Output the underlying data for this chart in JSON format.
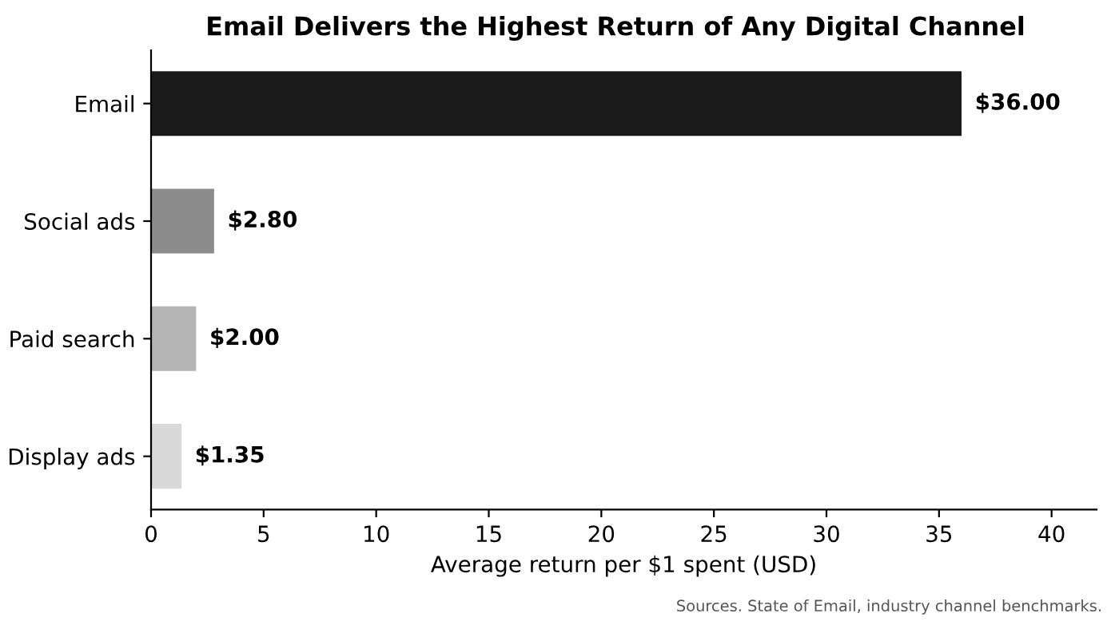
{
  "chart_data": {
    "type": "bar",
    "orientation": "horizontal",
    "title": "Email Delivers the Highest Return of Any Digital Channel",
    "categories": [
      "Email",
      "Social ads",
      "Paid search",
      "Display ads"
    ],
    "values": [
      36.0,
      2.8,
      2.0,
      1.35
    ],
    "colors": [
      "#1a1a1a",
      "#8c8c8c",
      "#b5b5b5",
      "#d9d9d9"
    ],
    "value_labels": [
      "$36.00",
      "$2.80",
      "$2.00",
      "$1.35"
    ],
    "xlabel": "Average return per $1 spent (USD)",
    "xlim": [
      0,
      42
    ],
    "xticks": [
      0,
      5,
      10,
      15,
      20,
      25,
      30,
      35,
      40
    ],
    "grid": false,
    "legend": false,
    "annotations": [
      "Sources. State of Email, industry channel benchmarks."
    ]
  }
}
